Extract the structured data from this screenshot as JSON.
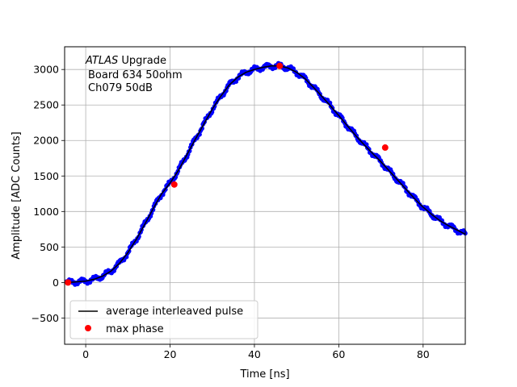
{
  "chart_data": {
    "type": "scatter",
    "xlabel": "Time [ns]",
    "ylabel": "Amplitude [ADC Counts]",
    "xlim": [
      -5,
      90
    ],
    "ylim": [
      -870,
      3320
    ],
    "xticks": [
      0,
      20,
      40,
      60,
      80
    ],
    "yticks": [
      -500,
      0,
      500,
      1000,
      1500,
      2000,
      2500,
      3000
    ],
    "grid": true,
    "legend_position": "lower-left",
    "annotation": {
      "italic": "ATLAS",
      "line1_rest": " Upgrade",
      "line2": "Board 634 50ohm",
      "line3": "Ch079 50dB"
    },
    "series": [
      {
        "name": "average interleaved pulse",
        "kind": "line",
        "color": "#000000",
        "x": [
          -4,
          0,
          2,
          4,
          6,
          8,
          10,
          12,
          14,
          16,
          18,
          20,
          22,
          24,
          26,
          28,
          30,
          32,
          34,
          36,
          38,
          40,
          42,
          44,
          46,
          48,
          50,
          52,
          54,
          56,
          58,
          60,
          62,
          64,
          66,
          68,
          70,
          72,
          74,
          76,
          78,
          80,
          82,
          84,
          86,
          88,
          90
        ],
        "y": [
          0,
          20,
          45,
          90,
          160,
          270,
          420,
          610,
          820,
          1040,
          1250,
          1400,
          1580,
          1800,
          2020,
          2230,
          2440,
          2620,
          2780,
          2890,
          2960,
          3000,
          3030,
          3050,
          3050,
          3020,
          2960,
          2870,
          2750,
          2620,
          2490,
          2350,
          2210,
          2070,
          1940,
          1820,
          1700,
          1570,
          1440,
          1310,
          1180,
          1060,
          960,
          870,
          800,
          740,
          680
        ]
      },
      {
        "name": "",
        "kind": "scatter",
        "color": "#0000ff",
        "description_source": "dense sampled points along the average pulse"
      },
      {
        "name": "max phase",
        "kind": "scatter",
        "color": "#ff0000",
        "x": [
          -4.2,
          21,
          46,
          71
        ],
        "y": [
          0,
          1380,
          3050,
          1900
        ]
      }
    ]
  }
}
